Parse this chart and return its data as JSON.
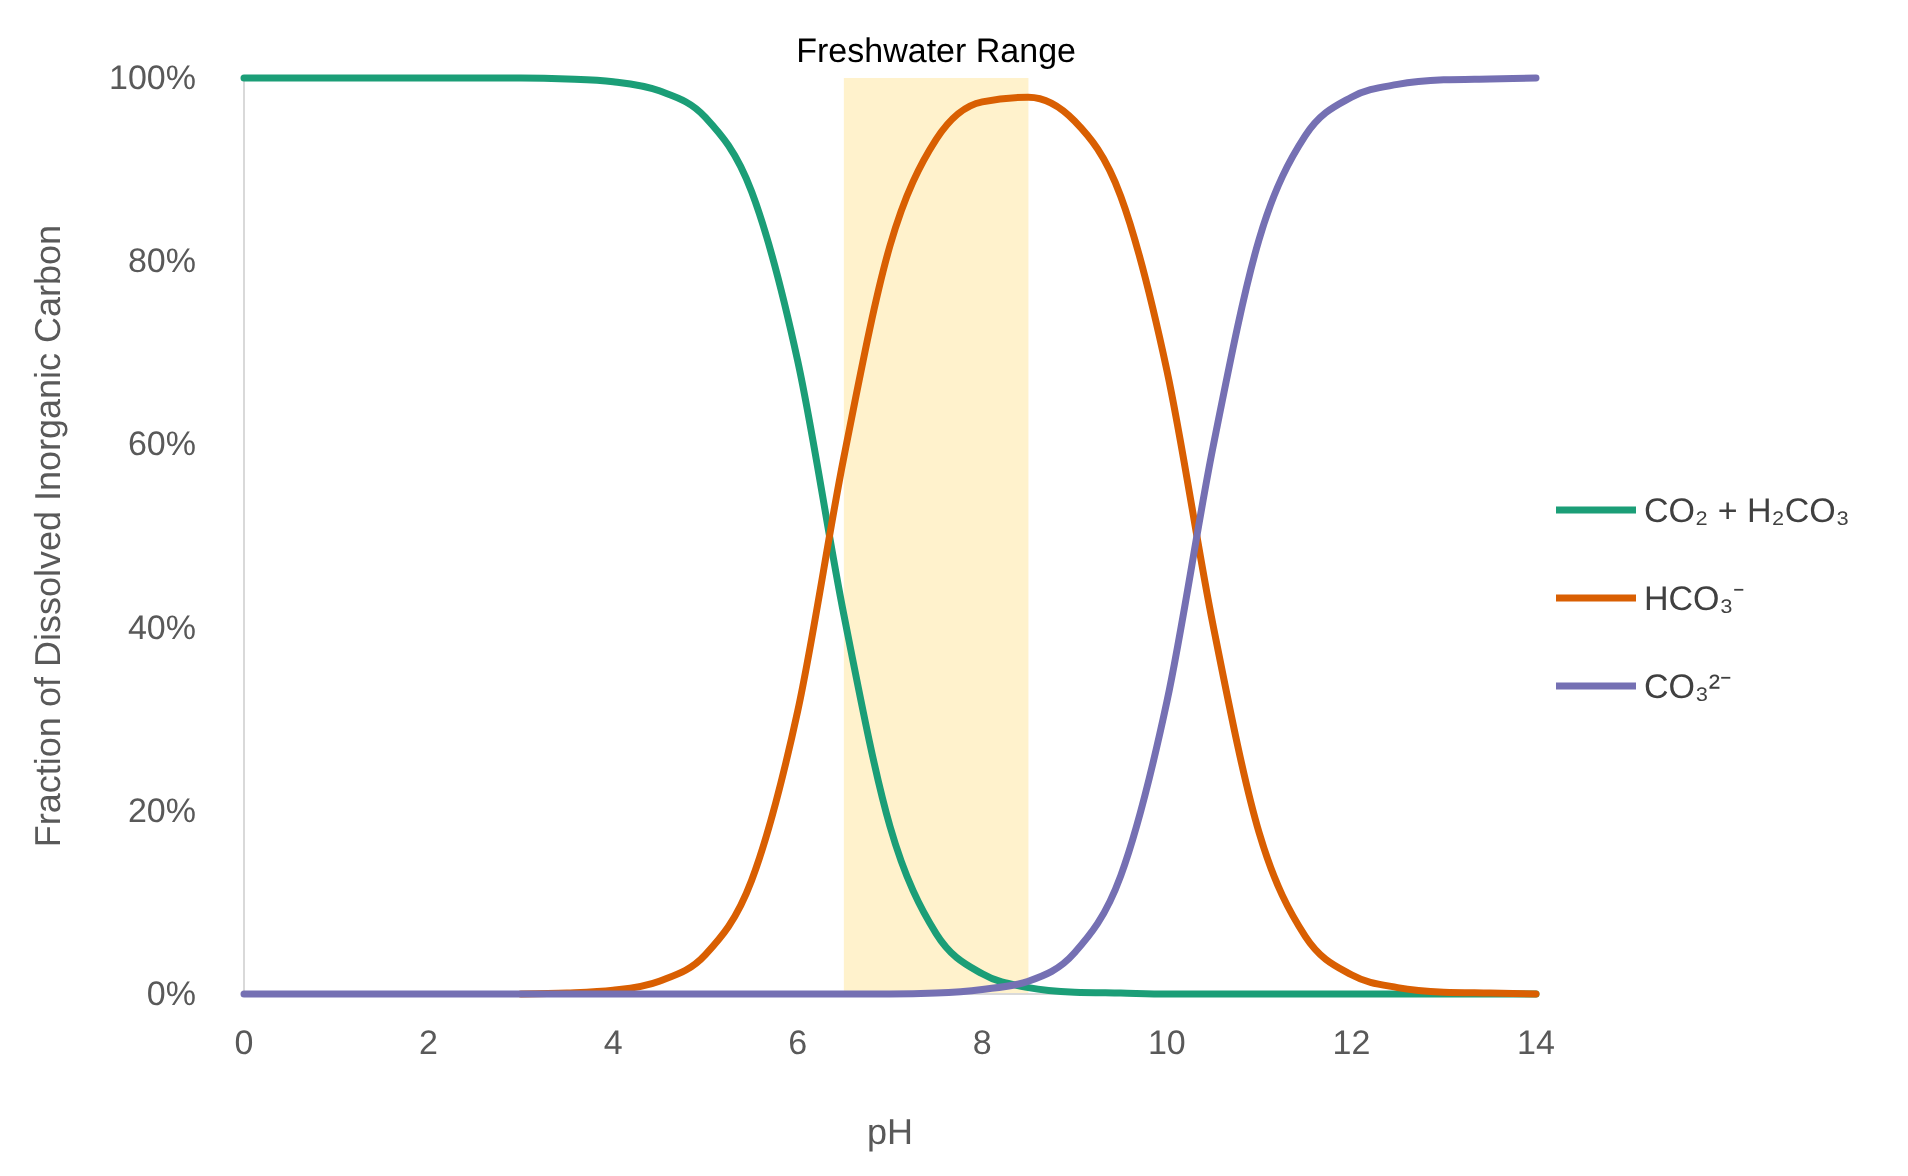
{
  "chart_data": {
    "type": "line",
    "xlabel": "pH",
    "ylabel": "Fraction of Dissolved Inorganic Carbon",
    "x": [
      0,
      0.5,
      1,
      1.5,
      2,
      2.5,
      3,
      3.5,
      4,
      4.5,
      5,
      5.5,
      6,
      6.5,
      7,
      7.5,
      8,
      8.5,
      9,
      9.5,
      10,
      10.5,
      11,
      11.5,
      12,
      12.5,
      13,
      13.5,
      14
    ],
    "series": [
      {
        "name": "CO₂ + H₂CO₃",
        "color": "#1b9e77",
        "values": [
          100,
          100,
          100,
          100,
          100,
          100,
          100,
          99.9,
          99.6,
          98.6,
          95.7,
          87.6,
          69.1,
          41.4,
          18.3,
          6.6,
          2.2,
          0.7,
          0.2,
          0.1,
          0,
          0,
          0,
          0,
          0,
          0,
          0,
          0,
          0
        ]
      },
      {
        "name": "HCO₃⁻",
        "color": "#d95f02",
        "values": [
          null,
          null,
          null,
          null,
          null,
          null,
          0,
          0.1,
          0.4,
          1.4,
          4.3,
          12.4,
          30.9,
          58.6,
          81.7,
          93.3,
          97.4,
          97.9,
          95.3,
          87.1,
          68.1,
          40.3,
          17.6,
          6.3,
          2.1,
          0.7,
          0.2,
          0.1,
          0
        ]
      },
      {
        "name": "CO₃²⁻",
        "color": "#7570b3",
        "values": [
          0,
          0,
          0,
          0,
          0,
          0,
          0,
          0,
          0,
          0,
          0,
          0,
          0,
          0,
          0,
          0.1,
          0.5,
          1.4,
          4.5,
          12.9,
          31.9,
          59.7,
          82.4,
          93.7,
          97.9,
          99.3,
          99.8,
          99.9,
          100
        ]
      }
    ],
    "xlim": [
      0,
      14
    ],
    "xticks": [
      0,
      2,
      4,
      6,
      8,
      10,
      12,
      14
    ],
    "ylim": [
      0,
      100
    ],
    "yticks": [
      {
        "value": 0,
        "label": "0%"
      },
      {
        "value": 20,
        "label": "20%"
      },
      {
        "value": 40,
        "label": "40%"
      },
      {
        "value": 60,
        "label": "60%"
      },
      {
        "value": 80,
        "label": "80%"
      },
      {
        "value": 100,
        "label": "100%"
      }
    ],
    "bands": [
      {
        "axis": "x",
        "from": 6.5,
        "to": 8.5,
        "label": "Freshwater Range",
        "color": "#fff2cc"
      }
    ],
    "grid": false,
    "legend": "right",
    "marker": "none",
    "line_style": "solid"
  }
}
